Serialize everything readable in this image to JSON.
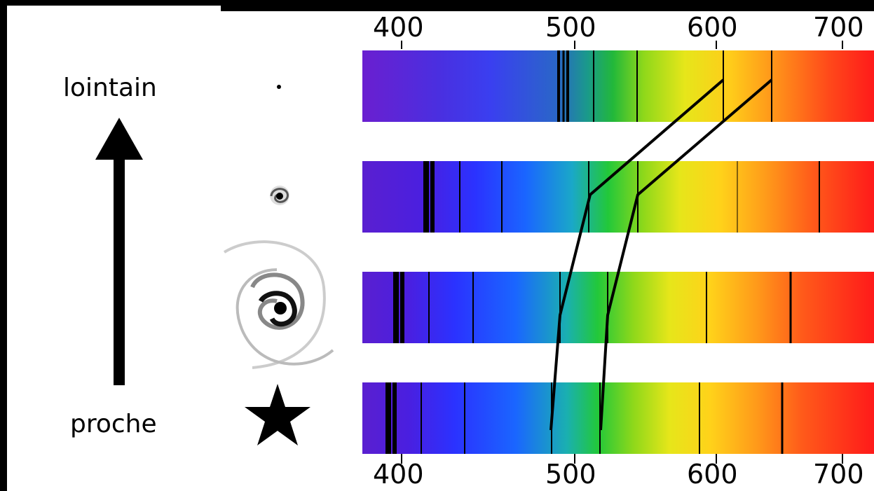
{
  "labels": {
    "far": "lointain",
    "near": "proche"
  },
  "axis": {
    "top_ticks": [
      "400",
      "500",
      "600",
      "700"
    ],
    "bottom_ticks": [
      "400",
      "500",
      "600",
      "700"
    ]
  },
  "spectra": [
    {
      "name": "spectrum-farthest",
      "object": "tiny-galaxy-icon",
      "absorption_lines_nm": [
        493,
        496,
        498,
        513,
        540,
        608,
        645
      ]
    },
    {
      "name": "spectrum-far",
      "object": "small-spiral-galaxy-icon",
      "absorption_lines_nm": [
        414,
        417,
        433,
        458,
        511,
        541,
        593,
        643
      ]
    },
    {
      "name": "spectrum-near",
      "object": "large-spiral-galaxy-icon",
      "absorption_lines_nm": [
        398,
        401,
        418,
        440,
        493,
        524,
        595,
        662
      ]
    },
    {
      "name": "spectrum-nearest",
      "object": "star-icon",
      "absorption_lines_nm": [
        391,
        394,
        411,
        437,
        486,
        517,
        589,
        656
      ]
    }
  ],
  "colors": {
    "background": "#000000",
    "panel": "#ffffff",
    "lines": "#000000"
  }
}
